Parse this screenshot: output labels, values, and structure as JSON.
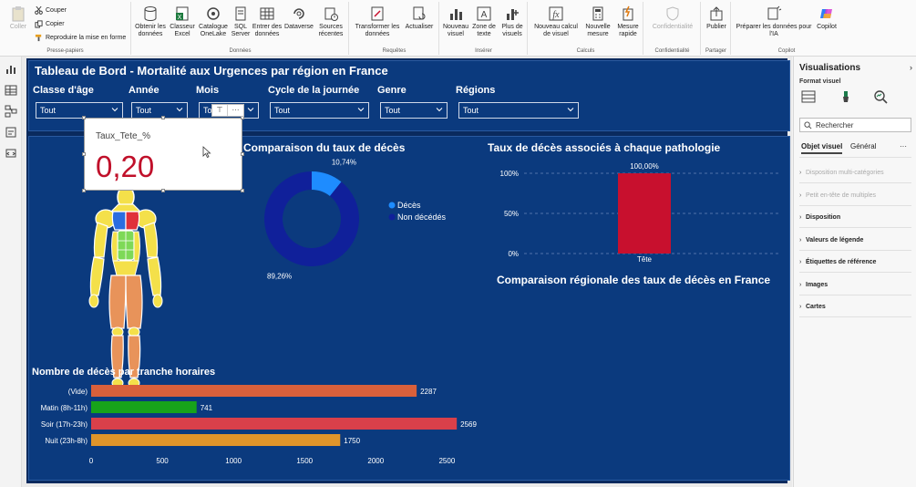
{
  "ribbon": {
    "clipboard": {
      "paste_label": "Coller",
      "cut_label": "Couper",
      "copy_label": "Copier",
      "format_painter_label": "Reproduire la mise en forme",
      "group_label": "Presse-papiers"
    },
    "data": {
      "get_data_label": "Obtenir les données",
      "excel_label": "Classeur Excel",
      "onelake_label": "Catalogue OneLake",
      "sql_label": "SQL Server",
      "enter_data_label": "Entrer des données",
      "dataverse_label": "Dataverse",
      "recent_sources_label": "Sources récentes",
      "group_label": "Données"
    },
    "queries": {
      "transform_label": "Transformer les données",
      "refresh_label": "Actualiser",
      "group_label": "Requêtes"
    },
    "insert": {
      "new_visual_label": "Nouveau visuel",
      "text_box_label": "Zone de texte",
      "more_visuals_label": "Plus de visuels",
      "group_label": "Insérer"
    },
    "calculations": {
      "new_calc_label": "Nouveau calcul de visuel",
      "new_measure_label": "Nouvelle mesure",
      "quick_measure_label": "Mesure rapide",
      "group_label": "Calculs"
    },
    "sensitivity": {
      "label": "Confidentialité",
      "group_label": "Confidentialité"
    },
    "share": {
      "publish_label": "Publier",
      "group_label": "Partager"
    },
    "copilot": {
      "prepare_label": "Préparer les données pour l'IA",
      "copilot_label": "Copilot",
      "group_label": "Copilot"
    }
  },
  "report": {
    "title": "Tableau de Bord - Mortalité aux Urgences par région en France",
    "slicers": [
      {
        "label": "Classe d'âge",
        "value": "Tout"
      },
      {
        "label": "Année",
        "value": "Tout"
      },
      {
        "label": "Mois",
        "value": "Tout"
      },
      {
        "label": "Cycle de la journée",
        "value": "Tout"
      },
      {
        "label": "Genre",
        "value": "Tout"
      },
      {
        "label": "Régions",
        "value": "Tout"
      }
    ],
    "kpi": {
      "label": "Taux_Tete_%",
      "value": "0,20"
    },
    "donut_title": "Comparaison du taux de décès",
    "pathology_title": "Taux de décès associés à chaque pathologie",
    "regional_title": "Comparaison régionale des taux de décès en France",
    "hourly_title": "Nombre de décès par tranche horaires",
    "visual_toolbar": {
      "filter_glyph": "⊤",
      "more_glyph": "···"
    }
  },
  "chart_data": [
    {
      "type": "pie",
      "title": "Comparaison du taux de décès",
      "categories": [
        "Décès",
        "Non décédés"
      ],
      "values": [
        10.74,
        89.26
      ],
      "value_labels": [
        "10,74%",
        "89,26%"
      ],
      "colors": [
        "#1e8cff",
        "#10209a"
      ],
      "legend": "right"
    },
    {
      "type": "bar",
      "title": "Taux de décès associés à chaque pathologie",
      "categories": [
        "Tête"
      ],
      "values": [
        100
      ],
      "value_labels": [
        "100,00%"
      ],
      "ylim": [
        0,
        100
      ],
      "yticks": [
        "0%",
        "50%",
        "100%"
      ],
      "ytick_values": [
        0,
        50,
        100
      ],
      "colors": [
        "#c8102e"
      ],
      "grid": true
    },
    {
      "type": "bar",
      "orientation": "horizontal",
      "title": "Nombre de décès par tranche horaires",
      "categories": [
        "(Vide)",
        "Matin (8h-11h)",
        "Soir (17h-23h)",
        "Nuit (23h-8h)"
      ],
      "values": [
        2287,
        741,
        2569,
        1750
      ],
      "value_labels": [
        "2287",
        "741",
        "2569",
        "1750"
      ],
      "colors": [
        "#d9603b",
        "#17a31a",
        "#d9404a",
        "#e0952a"
      ],
      "xlim": [
        0,
        2600
      ],
      "xticks": [
        0,
        500,
        1000,
        1500,
        2000,
        2500
      ],
      "xtick_labels": [
        "0",
        "500",
        "1000",
        "1500",
        "2000",
        "2500"
      ]
    }
  ],
  "viz_pane": {
    "title": "Visualisations",
    "collapse_glyph": "›",
    "format_label": "Format visuel",
    "search_placeholder": "Rechercher",
    "tab_visual": "Objet visuel",
    "tab_general": "Général",
    "more_glyph": "···",
    "sections": [
      {
        "label": "Disposition multi-catégories",
        "disabled": true
      },
      {
        "label": "Petit en-tête de multiples",
        "disabled": true
      },
      {
        "label": "Disposition",
        "disabled": false
      },
      {
        "label": "Valeurs de légende",
        "disabled": false
      },
      {
        "label": "Étiquettes de référence",
        "disabled": false
      },
      {
        "label": "Images",
        "disabled": false
      },
      {
        "label": "Cartes",
        "disabled": false
      }
    ]
  }
}
